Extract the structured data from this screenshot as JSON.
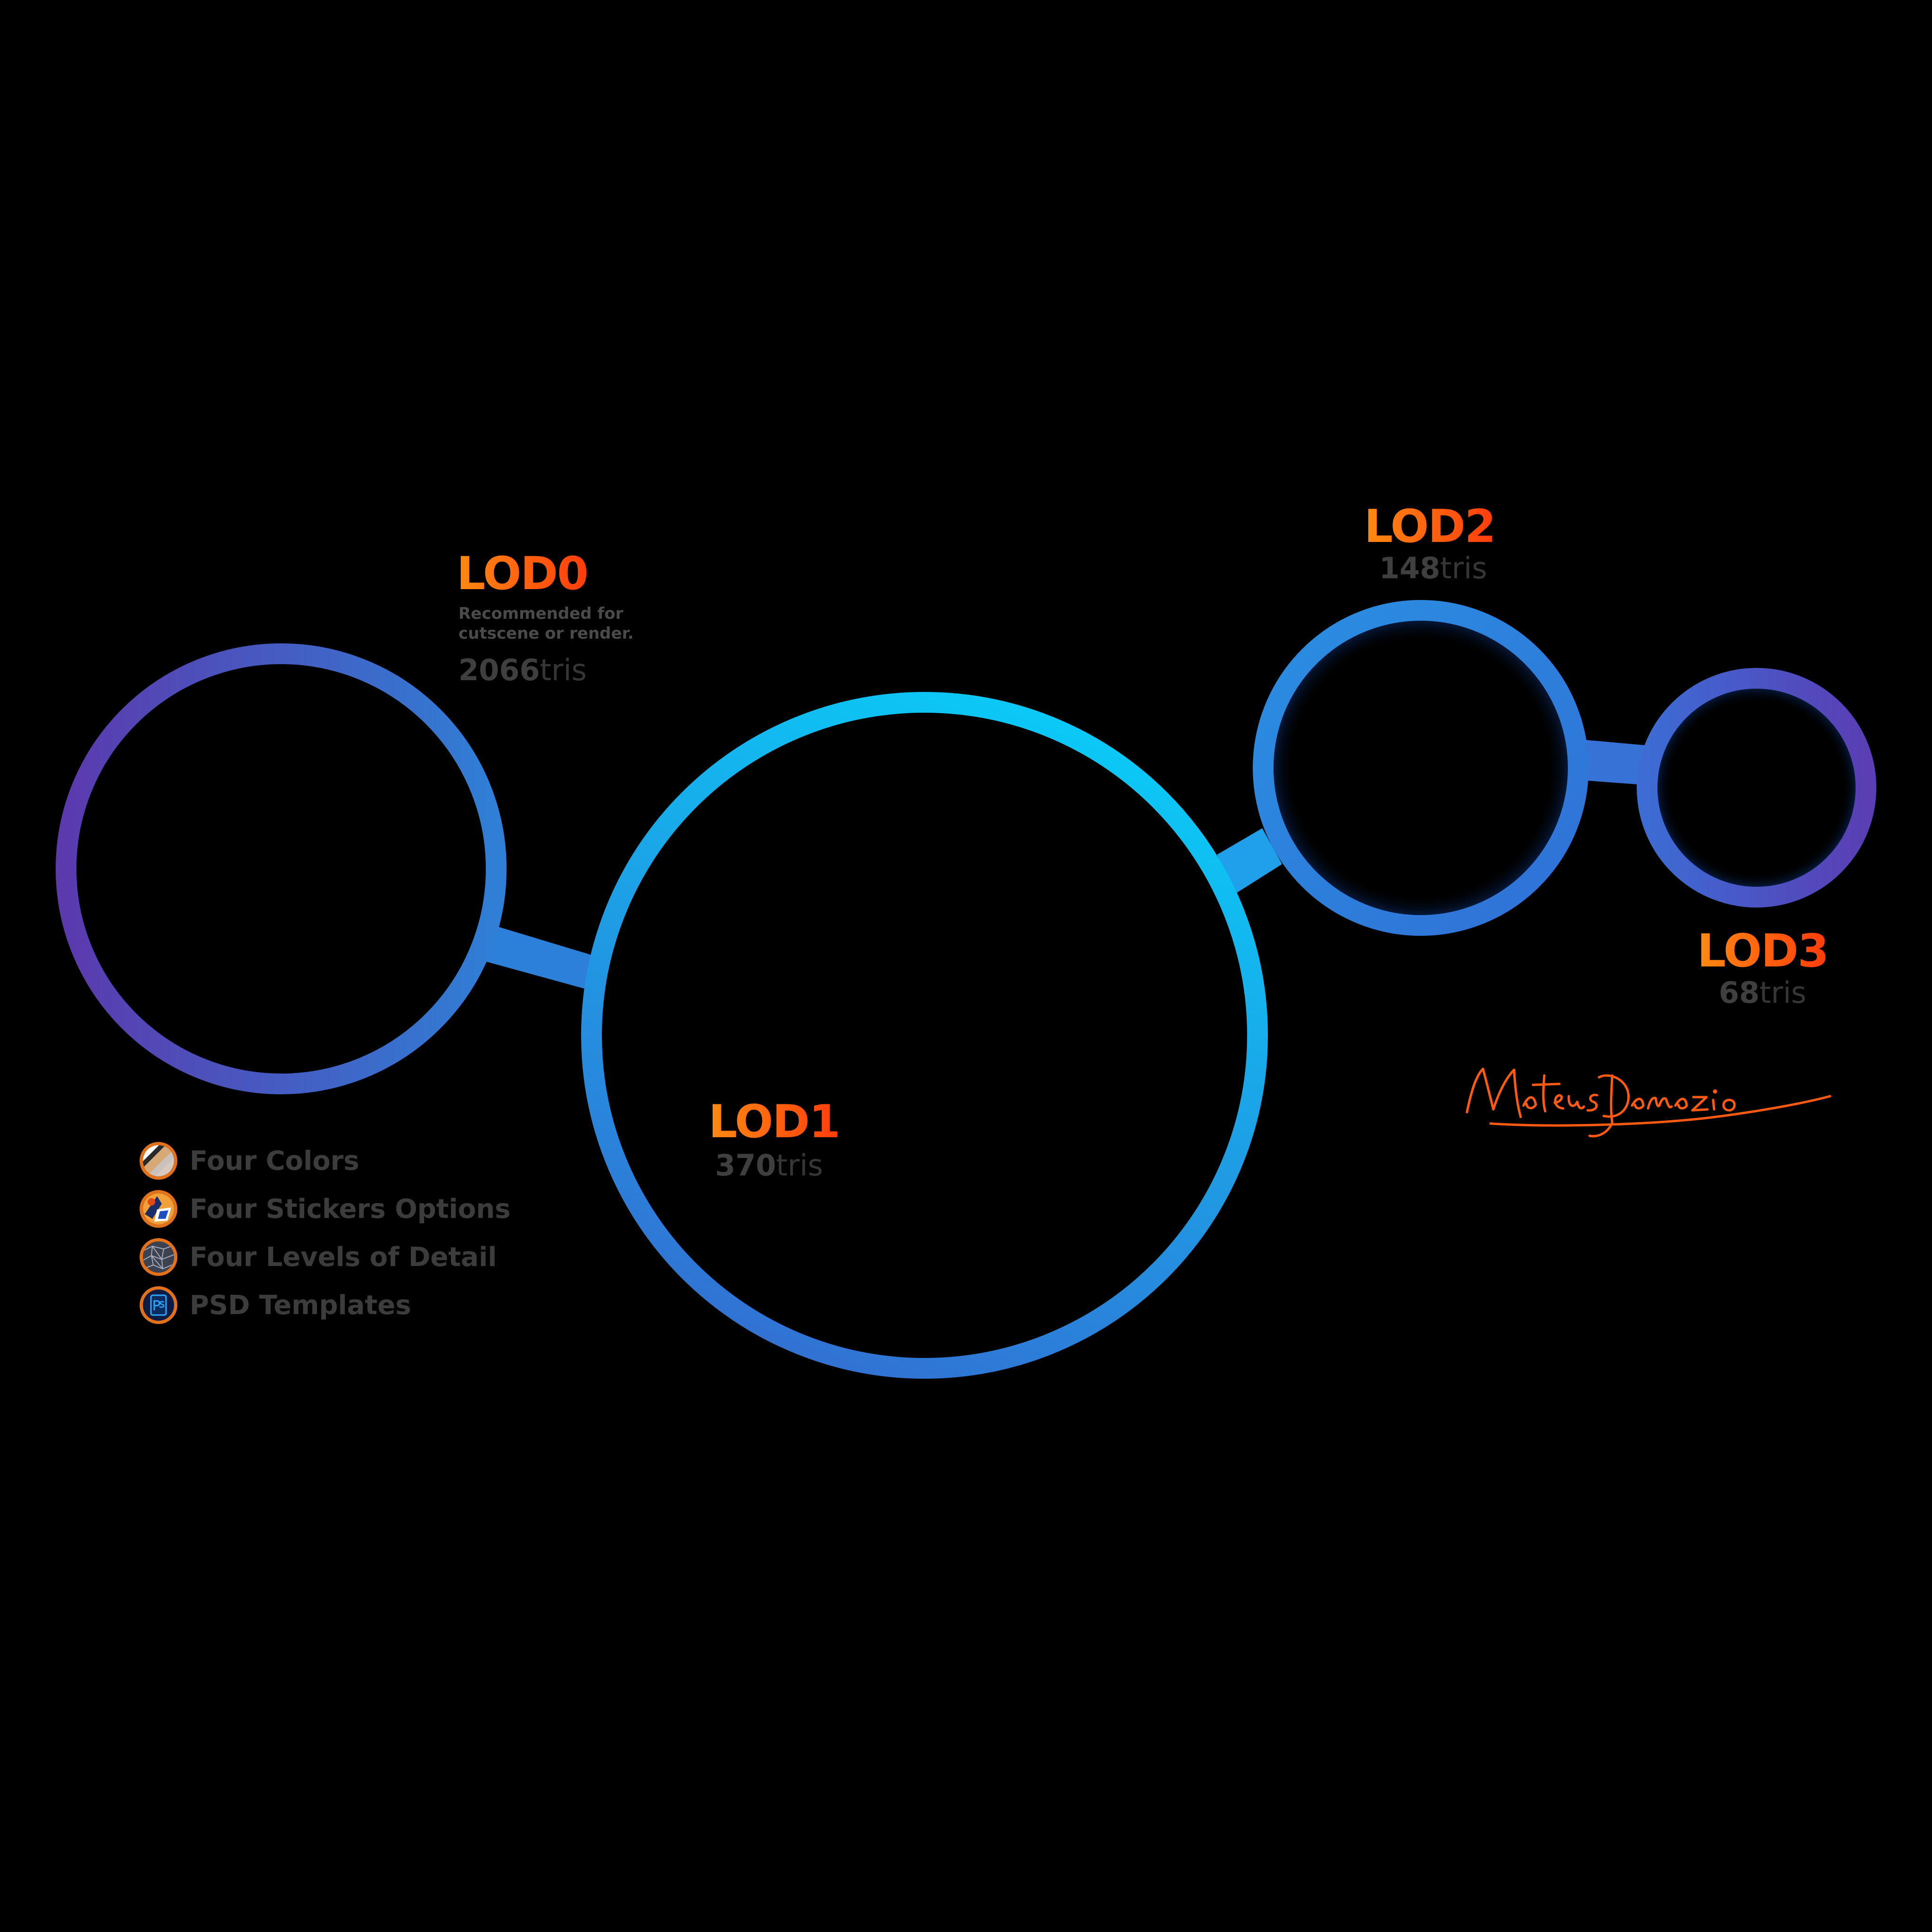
{
  "lods": [
    {
      "title": "LOD0",
      "note_line1": "Recommended for",
      "note_line2": "cutscene or render.",
      "tris_value": "2066",
      "tris_unit": "tris"
    },
    {
      "title": "LOD1",
      "tris_value": "370",
      "tris_unit": "tris"
    },
    {
      "title": "LOD2",
      "tris_value": "148",
      "tris_unit": "tris"
    },
    {
      "title": "LOD3",
      "tris_value": "68",
      "tris_unit": "tris"
    }
  ],
  "features": [
    {
      "label": "Four Colors",
      "icon": "color-swatches-icon"
    },
    {
      "label": "Four Stickers Options",
      "icon": "stickers-icon"
    },
    {
      "label": "Four Levels of Detail",
      "icon": "wireframe-icon"
    },
    {
      "label": "PSD Templates",
      "icon": "photoshop-psd-icon"
    }
  ],
  "signature": "MateusDamazio",
  "colors": {
    "background": "#000000",
    "ring_cyan": "#0bc8f5",
    "ring_blue": "#2e7fd8",
    "ring_purple": "#5a3fb0",
    "title_orange": "#ff8a12",
    "title_red": "#ff3c0c",
    "muted_text": "#3c3c3c"
  }
}
